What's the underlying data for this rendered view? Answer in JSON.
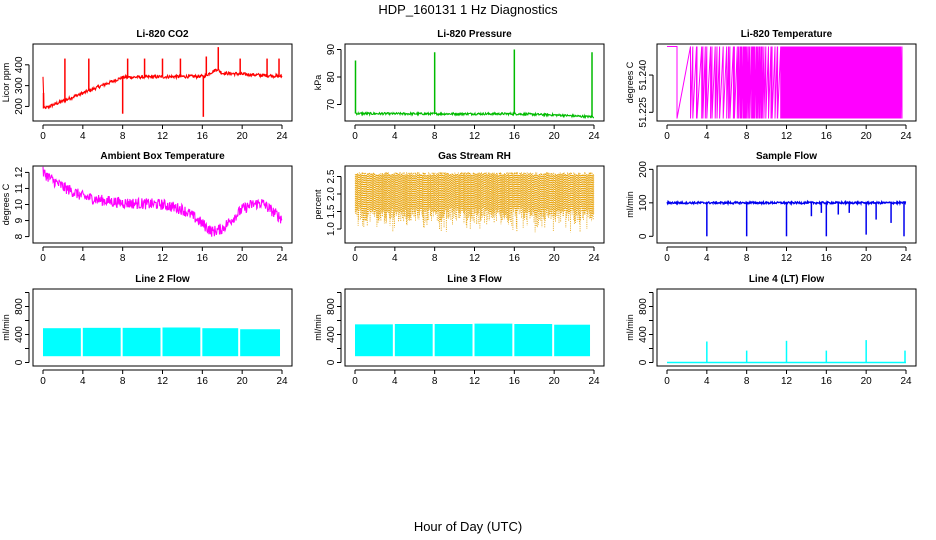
{
  "figure": {
    "title": "HDP_160131  1 Hz Diagnostics",
    "xlabel": "Hour of Day (UTC)"
  },
  "chart_data": [
    {
      "type": "line",
      "title": "Li-820 CO2",
      "ylabel": "Licor ppm",
      "color": "#ff0000",
      "xlim": [
        0,
        24
      ],
      "ylim": [
        130,
        500
      ],
      "xticks": [
        "0",
        "4",
        "8",
        "12",
        "16",
        "20",
        "24"
      ],
      "yticks": [
        200,
        300,
        400
      ],
      "baseline": 340,
      "noise": 8,
      "series": [
        {
          "x": [
            0,
            0.1,
            8,
            16.2,
            17.5,
            18,
            24
          ],
          "y": [
            340,
            190,
            340,
            345,
            380,
            360,
            345
          ]
        }
      ],
      "spikes": [
        {
          "x": 0.05,
          "y": 190
        },
        {
          "x": 2.2,
          "y": 430
        },
        {
          "x": 4.6,
          "y": 430
        },
        {
          "x": 8.0,
          "y": 165
        },
        {
          "x": 8.5,
          "y": 430
        },
        {
          "x": 10.2,
          "y": 430
        },
        {
          "x": 12.0,
          "y": 430
        },
        {
          "x": 13.8,
          "y": 430
        },
        {
          "x": 16.1,
          "y": 150
        },
        {
          "x": 16.4,
          "y": 440
        },
        {
          "x": 17.6,
          "y": 485
        },
        {
          "x": 19.8,
          "y": 430
        },
        {
          "x": 22.5,
          "y": 430
        },
        {
          "x": 23.7,
          "y": 430
        }
      ]
    },
    {
      "type": "line",
      "title": "Li-820 Pressure",
      "ylabel": "kPa",
      "color": "#00bb00",
      "xlim": [
        0,
        24
      ],
      "ylim": [
        64,
        92
      ],
      "xticks": [
        "0",
        "4",
        "8",
        "12",
        "16",
        "20",
        "24"
      ],
      "yticks": [
        70,
        80,
        90
      ],
      "noise": 0.4,
      "series": [
        {
          "x": [
            0,
            0.2,
            8,
            16,
            20,
            23.8
          ],
          "y": [
            67.0,
            66.7,
            66.6,
            66.6,
            66.2,
            65.5
          ]
        }
      ],
      "spikes": [
        {
          "x": 0.05,
          "y": 86
        },
        {
          "x": 8.0,
          "y": 89
        },
        {
          "x": 16.0,
          "y": 90
        },
        {
          "x": 23.8,
          "y": 89
        }
      ]
    },
    {
      "type": "line",
      "title": "Li-820 Temperature",
      "ylabel": "degrees C",
      "color": "#ff00ff",
      "xlim": [
        0,
        24
      ],
      "ylim": [
        51.2215,
        51.2525
      ],
      "xticks": [
        "0",
        "4",
        "8",
        "12",
        "16",
        "20",
        "24"
      ],
      "yticks": [
        51.225,
        51.24
      ],
      "ytick_labels": [
        "51.225",
        "51.240"
      ],
      "levels": {
        "high": 51.2515,
        "low": 51.2225
      },
      "switch_density": [
        {
          "from": 0.0,
          "to": 0.8,
          "rate": 0
        },
        {
          "from": 0.8,
          "to": 2.5,
          "rate": 1
        },
        {
          "from": 2.5,
          "to": 7.0,
          "rate": 4
        },
        {
          "from": 7.0,
          "to": 9.5,
          "rate": 10
        },
        {
          "from": 9.5,
          "to": 11.5,
          "rate": 5
        },
        {
          "from": 11.5,
          "to": 23.5,
          "rate": 22
        },
        {
          "from": 23.5,
          "to": 24.0,
          "rate": 2
        }
      ]
    },
    {
      "type": "line",
      "title": "Ambient Box Temperature",
      "ylabel": "degrees C",
      "color": "#ff00ff",
      "xlim": [
        0,
        24
      ],
      "ylim": [
        7.6,
        12.4
      ],
      "xticks": [
        "0",
        "4",
        "8",
        "12",
        "16",
        "20",
        "24"
      ],
      "yticks": [
        8,
        9,
        10,
        11,
        12
      ],
      "noise": 0.35,
      "series": [
        {
          "x": [
            0,
            1,
            2,
            3,
            4,
            6,
            8,
            10,
            12,
            14,
            15,
            16,
            17,
            18,
            19,
            20,
            21,
            22,
            23,
            24
          ],
          "y": [
            12.0,
            11.5,
            11.1,
            10.8,
            10.5,
            10.25,
            10.1,
            10.05,
            10.0,
            9.7,
            9.3,
            8.8,
            8.3,
            8.5,
            9.1,
            9.7,
            10.0,
            10.1,
            9.6,
            9.1
          ]
        }
      ]
    },
    {
      "type": "line",
      "title": "Gas Stream RH",
      "ylabel": "percent",
      "color": "#e69f00",
      "xlim": [
        0,
        24
      ],
      "ylim": [
        0.6,
        2.8
      ],
      "xticks": [
        "0",
        "4",
        "8",
        "12",
        "16",
        "20",
        "24"
      ],
      "yticks": [
        1.0,
        1.5,
        2.0,
        2.5
      ],
      "ytick_labels": [
        "1.0",
        "1.5",
        "2.0",
        "2.5"
      ],
      "band": {
        "top": 2.55,
        "bottom_typical": 1.4,
        "bottom_min": 0.9
      }
    },
    {
      "type": "line",
      "title": "Sample Flow",
      "ylabel": "ml/min",
      "color": "#0000ee",
      "xlim": [
        0,
        24
      ],
      "ylim": [
        -20,
        210
      ],
      "xticks": [
        "0",
        "4",
        "8",
        "12",
        "16",
        "20",
        "24"
      ],
      "yticks": [
        0,
        100,
        200
      ],
      "baseline": 100,
      "noise": 3,
      "dips": [
        {
          "x": 4.0,
          "y": 0
        },
        {
          "x": 8.0,
          "y": 0
        },
        {
          "x": 12.0,
          "y": 0
        },
        {
          "x": 16.0,
          "y": 0
        },
        {
          "x": 20.0,
          "y": 5
        },
        {
          "x": 23.8,
          "y": 0
        },
        {
          "x": 14.5,
          "y": 60
        },
        {
          "x": 15.5,
          "y": 70
        },
        {
          "x": 17.2,
          "y": 65
        },
        {
          "x": 18.3,
          "y": 70
        },
        {
          "x": 21.0,
          "y": 50
        },
        {
          "x": 22.5,
          "y": 40
        }
      ]
    },
    {
      "type": "line",
      "title": "Line 2 Flow",
      "ylabel": "ml/min",
      "color": "#00ffff",
      "xlim": [
        0,
        24
      ],
      "ylim": [
        -50,
        1050
      ],
      "xticks": [
        "0",
        "4",
        "8",
        "12",
        "16",
        "20",
        "24"
      ],
      "yticks": [
        0,
        200,
        400,
        600,
        800,
        1000
      ],
      "ytick_labels": [
        "0",
        "",
        "400",
        "",
        "800",
        ""
      ],
      "segments": [
        {
          "from": 0.0,
          "to": 3.8,
          "top": 490,
          "bottom": 90
        },
        {
          "from": 4.0,
          "to": 7.8,
          "top": 495,
          "bottom": 90
        },
        {
          "from": 8.0,
          "to": 11.8,
          "top": 495,
          "bottom": 90
        },
        {
          "from": 12.0,
          "to": 15.8,
          "top": 500,
          "bottom": 90
        },
        {
          "from": 16.0,
          "to": 19.6,
          "top": 490,
          "bottom": 90
        },
        {
          "from": 19.8,
          "to": 23.8,
          "top": 475,
          "bottom": 90
        }
      ]
    },
    {
      "type": "line",
      "title": "Line 3 Flow",
      "ylabel": "ml/min",
      "color": "#00ffff",
      "xlim": [
        0,
        24
      ],
      "ylim": [
        -50,
        1050
      ],
      "xticks": [
        "0",
        "4",
        "8",
        "12",
        "16",
        "20",
        "24"
      ],
      "yticks": [
        0,
        200,
        400,
        600,
        800,
        1000
      ],
      "ytick_labels": [
        "0",
        "",
        "400",
        "",
        "800",
        ""
      ],
      "segments": [
        {
          "from": 0.0,
          "to": 3.8,
          "top": 545,
          "bottom": 90
        },
        {
          "from": 4.0,
          "to": 7.8,
          "top": 550,
          "bottom": 90
        },
        {
          "from": 8.0,
          "to": 11.8,
          "top": 550,
          "bottom": 90
        },
        {
          "from": 12.0,
          "to": 15.8,
          "top": 555,
          "bottom": 90
        },
        {
          "from": 16.0,
          "to": 19.8,
          "top": 550,
          "bottom": 90
        },
        {
          "from": 20.0,
          "to": 23.6,
          "top": 540,
          "bottom": 90
        }
      ]
    },
    {
      "type": "line",
      "title": "Line 4 (LT) Flow",
      "ylabel": "ml/min",
      "color": "#00ffff",
      "xlim": [
        0,
        24
      ],
      "ylim": [
        -50,
        1050
      ],
      "xticks": [
        "0",
        "4",
        "8",
        "12",
        "16",
        "20",
        "24"
      ],
      "yticks": [
        0,
        200,
        400,
        600,
        800,
        1000
      ],
      "ytick_labels": [
        "0",
        "",
        "400",
        "",
        "800",
        ""
      ],
      "baseline": 0,
      "spikes": [
        {
          "x": 4.0,
          "y": 300
        },
        {
          "x": 8.0,
          "y": 170
        },
        {
          "x": 12.0,
          "y": 310
        },
        {
          "x": 16.0,
          "y": 170
        },
        {
          "x": 20.0,
          "y": 320
        },
        {
          "x": 23.9,
          "y": 170
        }
      ]
    }
  ]
}
